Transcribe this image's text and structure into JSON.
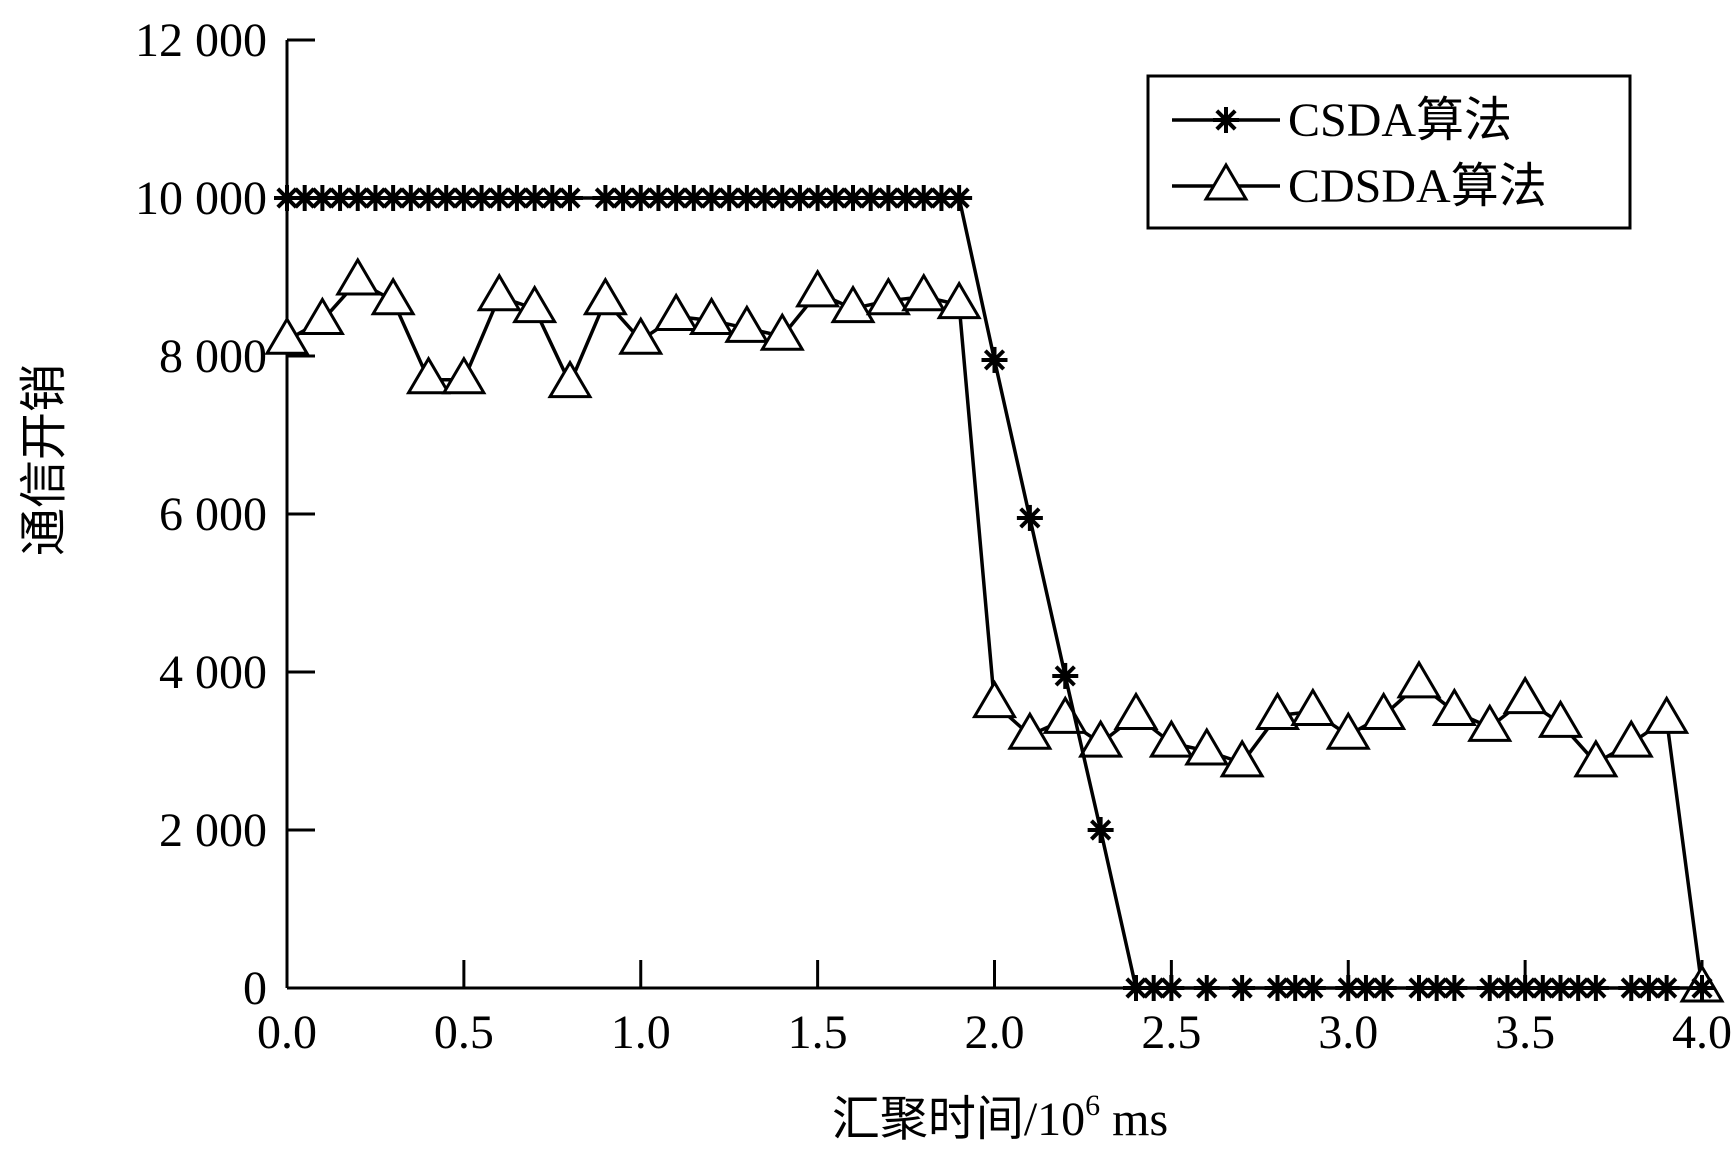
{
  "chart_data": {
    "type": "line",
    "title": "",
    "xlabel_main": "汇聚时间/10",
    "xlabel_sup": "6",
    "xlabel_unit": " ms",
    "ylabel": "通信开销",
    "xlim": [
      0.0,
      4.0
    ],
    "ylim": [
      0,
      12000
    ],
    "x_ticks": [
      "0.0",
      "0.5",
      "1.0",
      "1.5",
      "2.0",
      "2.5",
      "3.0",
      "3.5",
      "4.0"
    ],
    "y_ticks": [
      "0",
      "2 000",
      "4 000",
      "6 000",
      "8 000",
      "10 000",
      "12 000"
    ],
    "legend_position": "top-right",
    "grid": false,
    "series": [
      {
        "name": "CSDA算法",
        "marker": "asterisk",
        "x": [
          0.0,
          0.05,
          0.1,
          0.15,
          0.2,
          0.25,
          0.3,
          0.35,
          0.4,
          0.45,
          0.5,
          0.55,
          0.6,
          0.65,
          0.7,
          0.75,
          0.8,
          0.9,
          0.95,
          1.0,
          1.05,
          1.1,
          1.15,
          1.2,
          1.25,
          1.3,
          1.35,
          1.4,
          1.45,
          1.5,
          1.55,
          1.6,
          1.65,
          1.7,
          1.75,
          1.8,
          1.85,
          1.9,
          2.0,
          2.1,
          2.2,
          2.3,
          2.4,
          2.45,
          2.5,
          2.6,
          2.7,
          2.8,
          2.85,
          2.9,
          3.0,
          3.05,
          3.1,
          3.2,
          3.25,
          3.3,
          3.4,
          3.45,
          3.5,
          3.55,
          3.6,
          3.65,
          3.7,
          3.8,
          3.85,
          3.9,
          4.0
        ],
        "y": [
          10000,
          10000,
          10000,
          10000,
          10000,
          10000,
          10000,
          10000,
          10000,
          10000,
          10000,
          10000,
          10000,
          10000,
          10000,
          10000,
          10000,
          10000,
          10000,
          10000,
          10000,
          10000,
          10000,
          10000,
          10000,
          10000,
          10000,
          10000,
          10000,
          10000,
          10000,
          10000,
          10000,
          10000,
          10000,
          10000,
          10000,
          10000,
          7950,
          5950,
          3950,
          2000,
          0,
          0,
          0,
          0,
          0,
          0,
          0,
          0,
          0,
          0,
          0,
          0,
          0,
          0,
          0,
          0,
          0,
          0,
          0,
          0,
          0,
          0,
          0,
          0,
          0
        ]
      },
      {
        "name": "CDSDA算法",
        "marker": "triangle",
        "x": [
          0.0,
          0.1,
          0.2,
          0.3,
          0.4,
          0.5,
          0.6,
          0.7,
          0.8,
          0.9,
          1.0,
          1.1,
          1.2,
          1.3,
          1.4,
          1.5,
          1.6,
          1.7,
          1.8,
          1.9,
          2.0,
          2.1,
          2.2,
          2.3,
          2.4,
          2.5,
          2.6,
          2.7,
          2.8,
          2.9,
          3.0,
          3.1,
          3.2,
          3.3,
          3.4,
          3.5,
          3.6,
          3.7,
          3.8,
          3.9,
          4.0
        ],
        "y": [
          8200,
          8450,
          8950,
          8700,
          7700,
          7700,
          8750,
          8600,
          7650,
          8700,
          8200,
          8500,
          8450,
          8350,
          8250,
          8800,
          8600,
          8700,
          8750,
          8650,
          3600,
          3200,
          3400,
          3100,
          3450,
          3100,
          3000,
          2850,
          3450,
          3500,
          3200,
          3450,
          3850,
          3500,
          3300,
          3650,
          3350,
          2850,
          3100,
          3400,
          0
        ]
      }
    ]
  }
}
